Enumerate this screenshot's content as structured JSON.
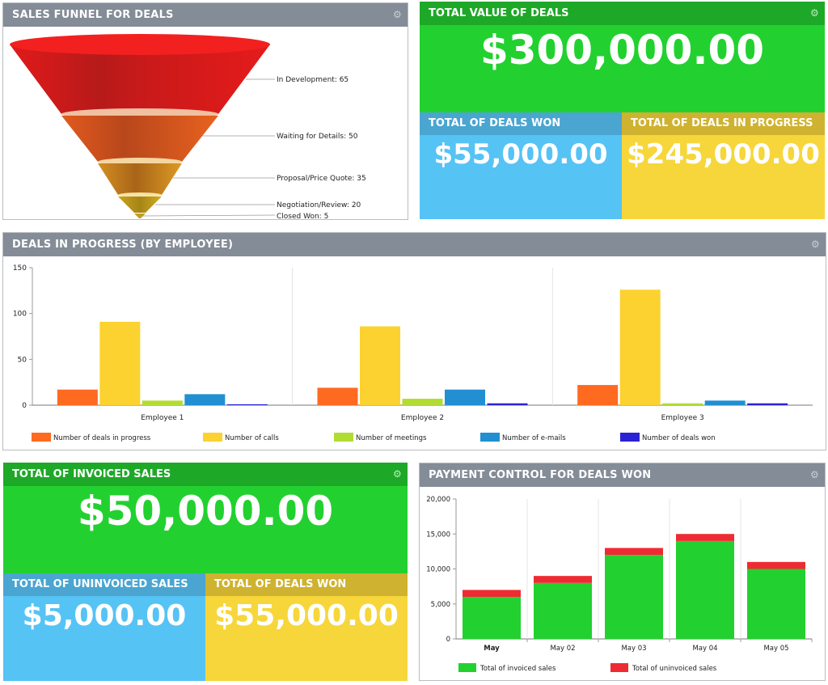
{
  "funnel": {
    "title": "SALES FUNNEL FOR DEALS",
    "stages": [
      {
        "label": "In Development: 65",
        "value": 65
      },
      {
        "label": "Waiting for Details: 50",
        "value": 50
      },
      {
        "label": "Proposal/Price Quote: 35",
        "value": 35
      },
      {
        "label": "Negotiation/Review: 20",
        "value": 20
      },
      {
        "label": "Closed Won: 5",
        "value": 5
      }
    ]
  },
  "kpi_top": {
    "total": {
      "title": "TOTAL VALUE OF DEALS",
      "value": "$300,000.00",
      "color": "#22d12f"
    },
    "won": {
      "title": "TOTAL OF DEALS WON",
      "value": "$55,000.00",
      "color": "#56c3f5"
    },
    "progress": {
      "title": "TOTAL OF DEALS IN PROGRESS",
      "value": "$245,000.00",
      "color": "#f6d63a"
    }
  },
  "kpi_bottom": {
    "invoiced": {
      "title": "TOTAL OF INVOICED SALES",
      "value": "$50,000.00",
      "color": "#22d12f"
    },
    "uninvoiced": {
      "title": "TOTAL OF UNINVOICED SALES",
      "value": "$5,000.00",
      "color": "#56c3f5"
    },
    "won": {
      "title": "TOTAL OF DEALS WON",
      "value": "$55,000.00",
      "color": "#f6d63a"
    }
  },
  "employees_panel": {
    "title": "DEALS IN PROGRESS (BY EMPLOYEE)"
  },
  "payment_panel": {
    "title": "PAYMENT CONTROL FOR DEALS WON"
  },
  "chart_data": [
    {
      "type": "bar",
      "categories": [
        "Employee 1",
        "Employee 2",
        "Employee 3"
      ],
      "ylim": [
        0,
        150
      ],
      "yticks": [
        "0",
        "50",
        "100",
        "150"
      ],
      "series": [
        {
          "name": "Number of deals in progress",
          "color": "#ff6a21",
          "values": [
            17,
            19,
            22
          ]
        },
        {
          "name": "Number of calls",
          "color": "#fbd230",
          "values": [
            91,
            86,
            126
          ]
        },
        {
          "name": "Number of meetings",
          "color": "#b1dc33",
          "values": [
            5,
            7,
            2
          ]
        },
        {
          "name": "Number of e-mails",
          "color": "#218fd2",
          "values": [
            12,
            17,
            5
          ]
        },
        {
          "name": "Number of deals won",
          "color": "#2a22d4",
          "values": [
            1,
            2,
            2
          ]
        }
      ]
    },
    {
      "type": "bar",
      "stacked": true,
      "categories": [
        "May",
        "May 02",
        "May 03",
        "May 04",
        "May 05"
      ],
      "ylim": [
        0,
        20000
      ],
      "yticks": [
        "0",
        "5,000",
        "10,000",
        "15,000",
        "20,000"
      ],
      "series": [
        {
          "name": "Total of invoiced sales",
          "color": "#22d12f",
          "values": [
            6000,
            8000,
            12000,
            14000,
            10000
          ]
        },
        {
          "name": "Total of uninvoiced sales",
          "color": "#ee2b32",
          "values": [
            1000,
            1000,
            1000,
            1000,
            1000
          ]
        }
      ]
    }
  ]
}
